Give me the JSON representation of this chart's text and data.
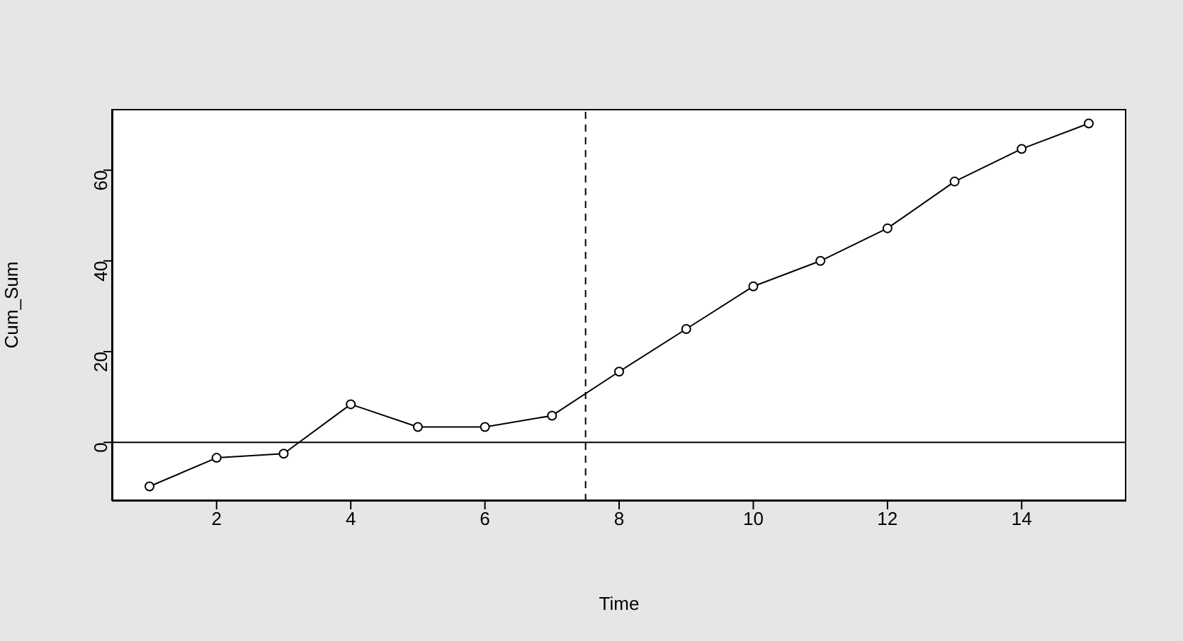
{
  "chart_data": {
    "type": "line",
    "xlabel": "Time",
    "ylabel": "Cum_Sum",
    "x": [
      1,
      2,
      3,
      4,
      5,
      6,
      7,
      8,
      9,
      10,
      11,
      12,
      13,
      14,
      15
    ],
    "values": [
      -9.7,
      -3.4,
      -2.5,
      8.4,
      3.4,
      3.4,
      5.9,
      15.6,
      25,
      34.4,
      40,
      47.2,
      57.5,
      64.7,
      70.3
    ],
    "color": "#000000",
    "marker": "circle",
    "line_style": "solid",
    "xlim": [
      0.44,
      15.56
    ],
    "ylim": [
      -12.9,
      73.5
    ],
    "xticks": [
      2,
      4,
      6,
      8,
      10,
      12,
      14
    ],
    "yticks": [
      0,
      20,
      40,
      60
    ],
    "ref_lines": [
      {
        "axis": "y",
        "value": 0,
        "line_style": "solid",
        "color": "#000000"
      },
      {
        "axis": "x",
        "value": 7.5,
        "line_style": "dashed",
        "color": "#000000"
      }
    ]
  }
}
